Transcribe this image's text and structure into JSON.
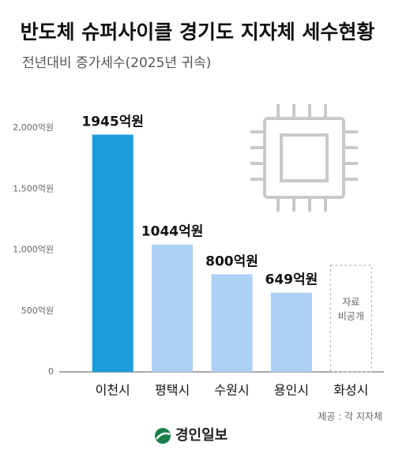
{
  "chart_data": {
    "type": "bar",
    "title": "반도체 슈퍼사이클 경기도 지자체 세수현황",
    "subtitle": "전년대비 증가세수(2025년 귀속)",
    "categories": [
      "이천시",
      "평택시",
      "수원시",
      "용인시",
      "화성시"
    ],
    "values": [
      1945,
      1044,
      800,
      649,
      null
    ],
    "value_labels": [
      "1945억원",
      "1044억원",
      "800억원",
      "649억원",
      null
    ],
    "colors": [
      "#1a9ddb",
      "#acd0f6",
      "#acd0f6",
      "#acd0f6",
      null
    ],
    "no_data_label": [
      "자료",
      "비공개"
    ],
    "ylim": [
      0,
      2000
    ],
    "yticks": [
      0,
      {
        "value": 500,
        "label": "500억원"
      },
      {
        "value": 1000,
        "label": "1,000억원"
      },
      {
        "value": 1500,
        "label": "1,500억원"
      },
      {
        "value": 2000,
        "label": "2,000억원"
      }
    ],
    "grid": false,
    "source": "제공 : 각 지자체",
    "brand": "경인일보"
  }
}
